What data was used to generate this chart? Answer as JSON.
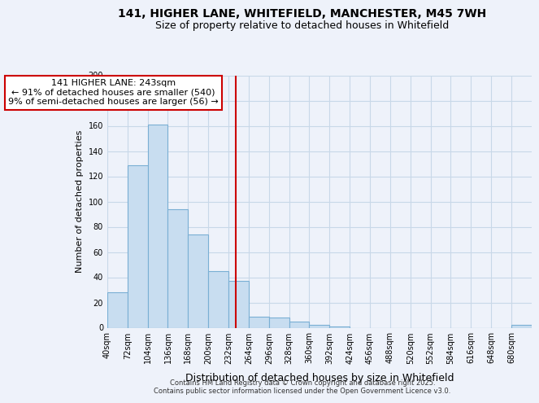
{
  "title": "141, HIGHER LANE, WHITEFIELD, MANCHESTER, M45 7WH",
  "subtitle": "Size of property relative to detached houses in Whitefield",
  "xlabel": "Distribution of detached houses by size in Whitefield",
  "ylabel": "Number of detached properties",
  "bin_labels": [
    "40sqm",
    "72sqm",
    "104sqm",
    "136sqm",
    "168sqm",
    "200sqm",
    "232sqm",
    "264sqm",
    "296sqm",
    "328sqm",
    "360sqm",
    "392sqm",
    "424sqm",
    "456sqm",
    "488sqm",
    "520sqm",
    "552sqm",
    "584sqm",
    "616sqm",
    "648sqm",
    "680sqm"
  ],
  "bar_values": [
    28,
    129,
    161,
    94,
    74,
    45,
    37,
    9,
    8,
    5,
    2,
    1,
    0,
    0,
    0,
    0,
    0,
    0,
    0,
    0,
    2
  ],
  "bar_color": "#c8ddf0",
  "bar_edge_color": "#7aafd4",
  "vline_color": "#cc0000",
  "vline_position": 6.34375,
  "annotation_title": "141 HIGHER LANE: 243sqm",
  "annotation_line1": "← 91% of detached houses are smaller (540)",
  "annotation_line2": "9% of semi-detached houses are larger (56) →",
  "ylim": [
    0,
    200
  ],
  "yticks": [
    0,
    20,
    40,
    60,
    80,
    100,
    120,
    140,
    160,
    180,
    200
  ],
  "grid_color": "#c8d8e8",
  "background_color": "#eef2fa",
  "footer1": "Contains HM Land Registry data © Crown copyright and database right 2025.",
  "footer2": "Contains public sector information licensed under the Open Government Licence v3.0.",
  "title_fontsize": 10,
  "subtitle_fontsize": 9,
  "annotation_fontsize": 8,
  "ylabel_fontsize": 8,
  "xlabel_fontsize": 9,
  "tick_fontsize": 7,
  "footer_fontsize": 6
}
